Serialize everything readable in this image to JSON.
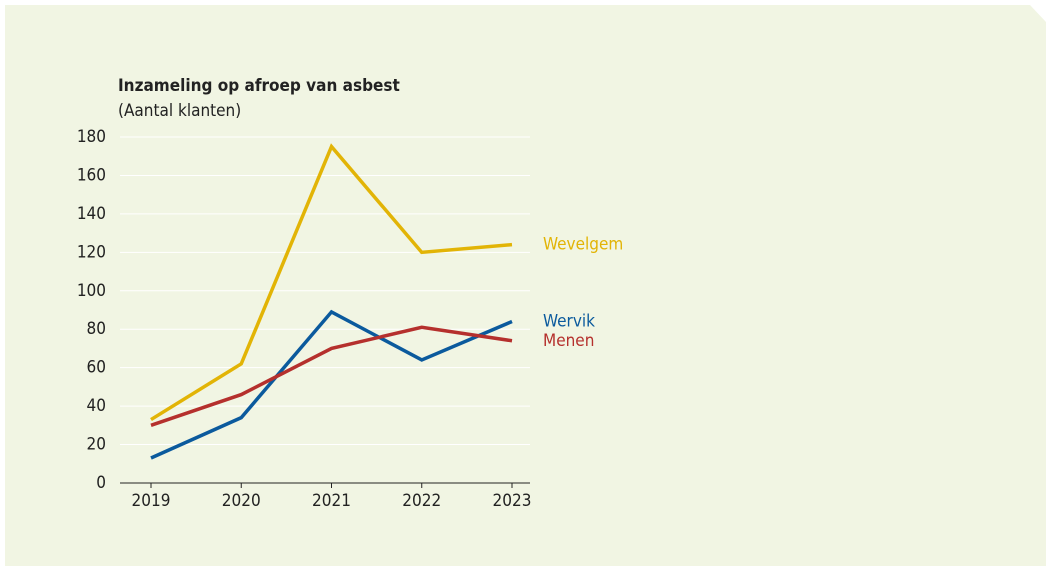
{
  "chart_data": {
    "type": "line",
    "title": "Inzameling op afroep van asbest",
    "subtitle": "(Aantal klanten)",
    "categories": [
      "2019",
      "2020",
      "2021",
      "2022",
      "2023"
    ],
    "series": [
      {
        "name": "Wevelgem",
        "color": "#e2b406",
        "values": [
          33,
          62,
          175,
          120,
          124
        ]
      },
      {
        "name": "Wervik",
        "color": "#0b5a9d",
        "values": [
          13,
          34,
          89,
          64,
          84
        ]
      },
      {
        "name": "Menen",
        "color": "#b5302d",
        "values": [
          30,
          46,
          70,
          81,
          74
        ]
      }
    ],
    "ylim": [
      0,
      180
    ],
    "yticks": [
      0,
      20,
      40,
      60,
      80,
      100,
      120,
      140,
      160,
      180
    ],
    "grid": true
  }
}
